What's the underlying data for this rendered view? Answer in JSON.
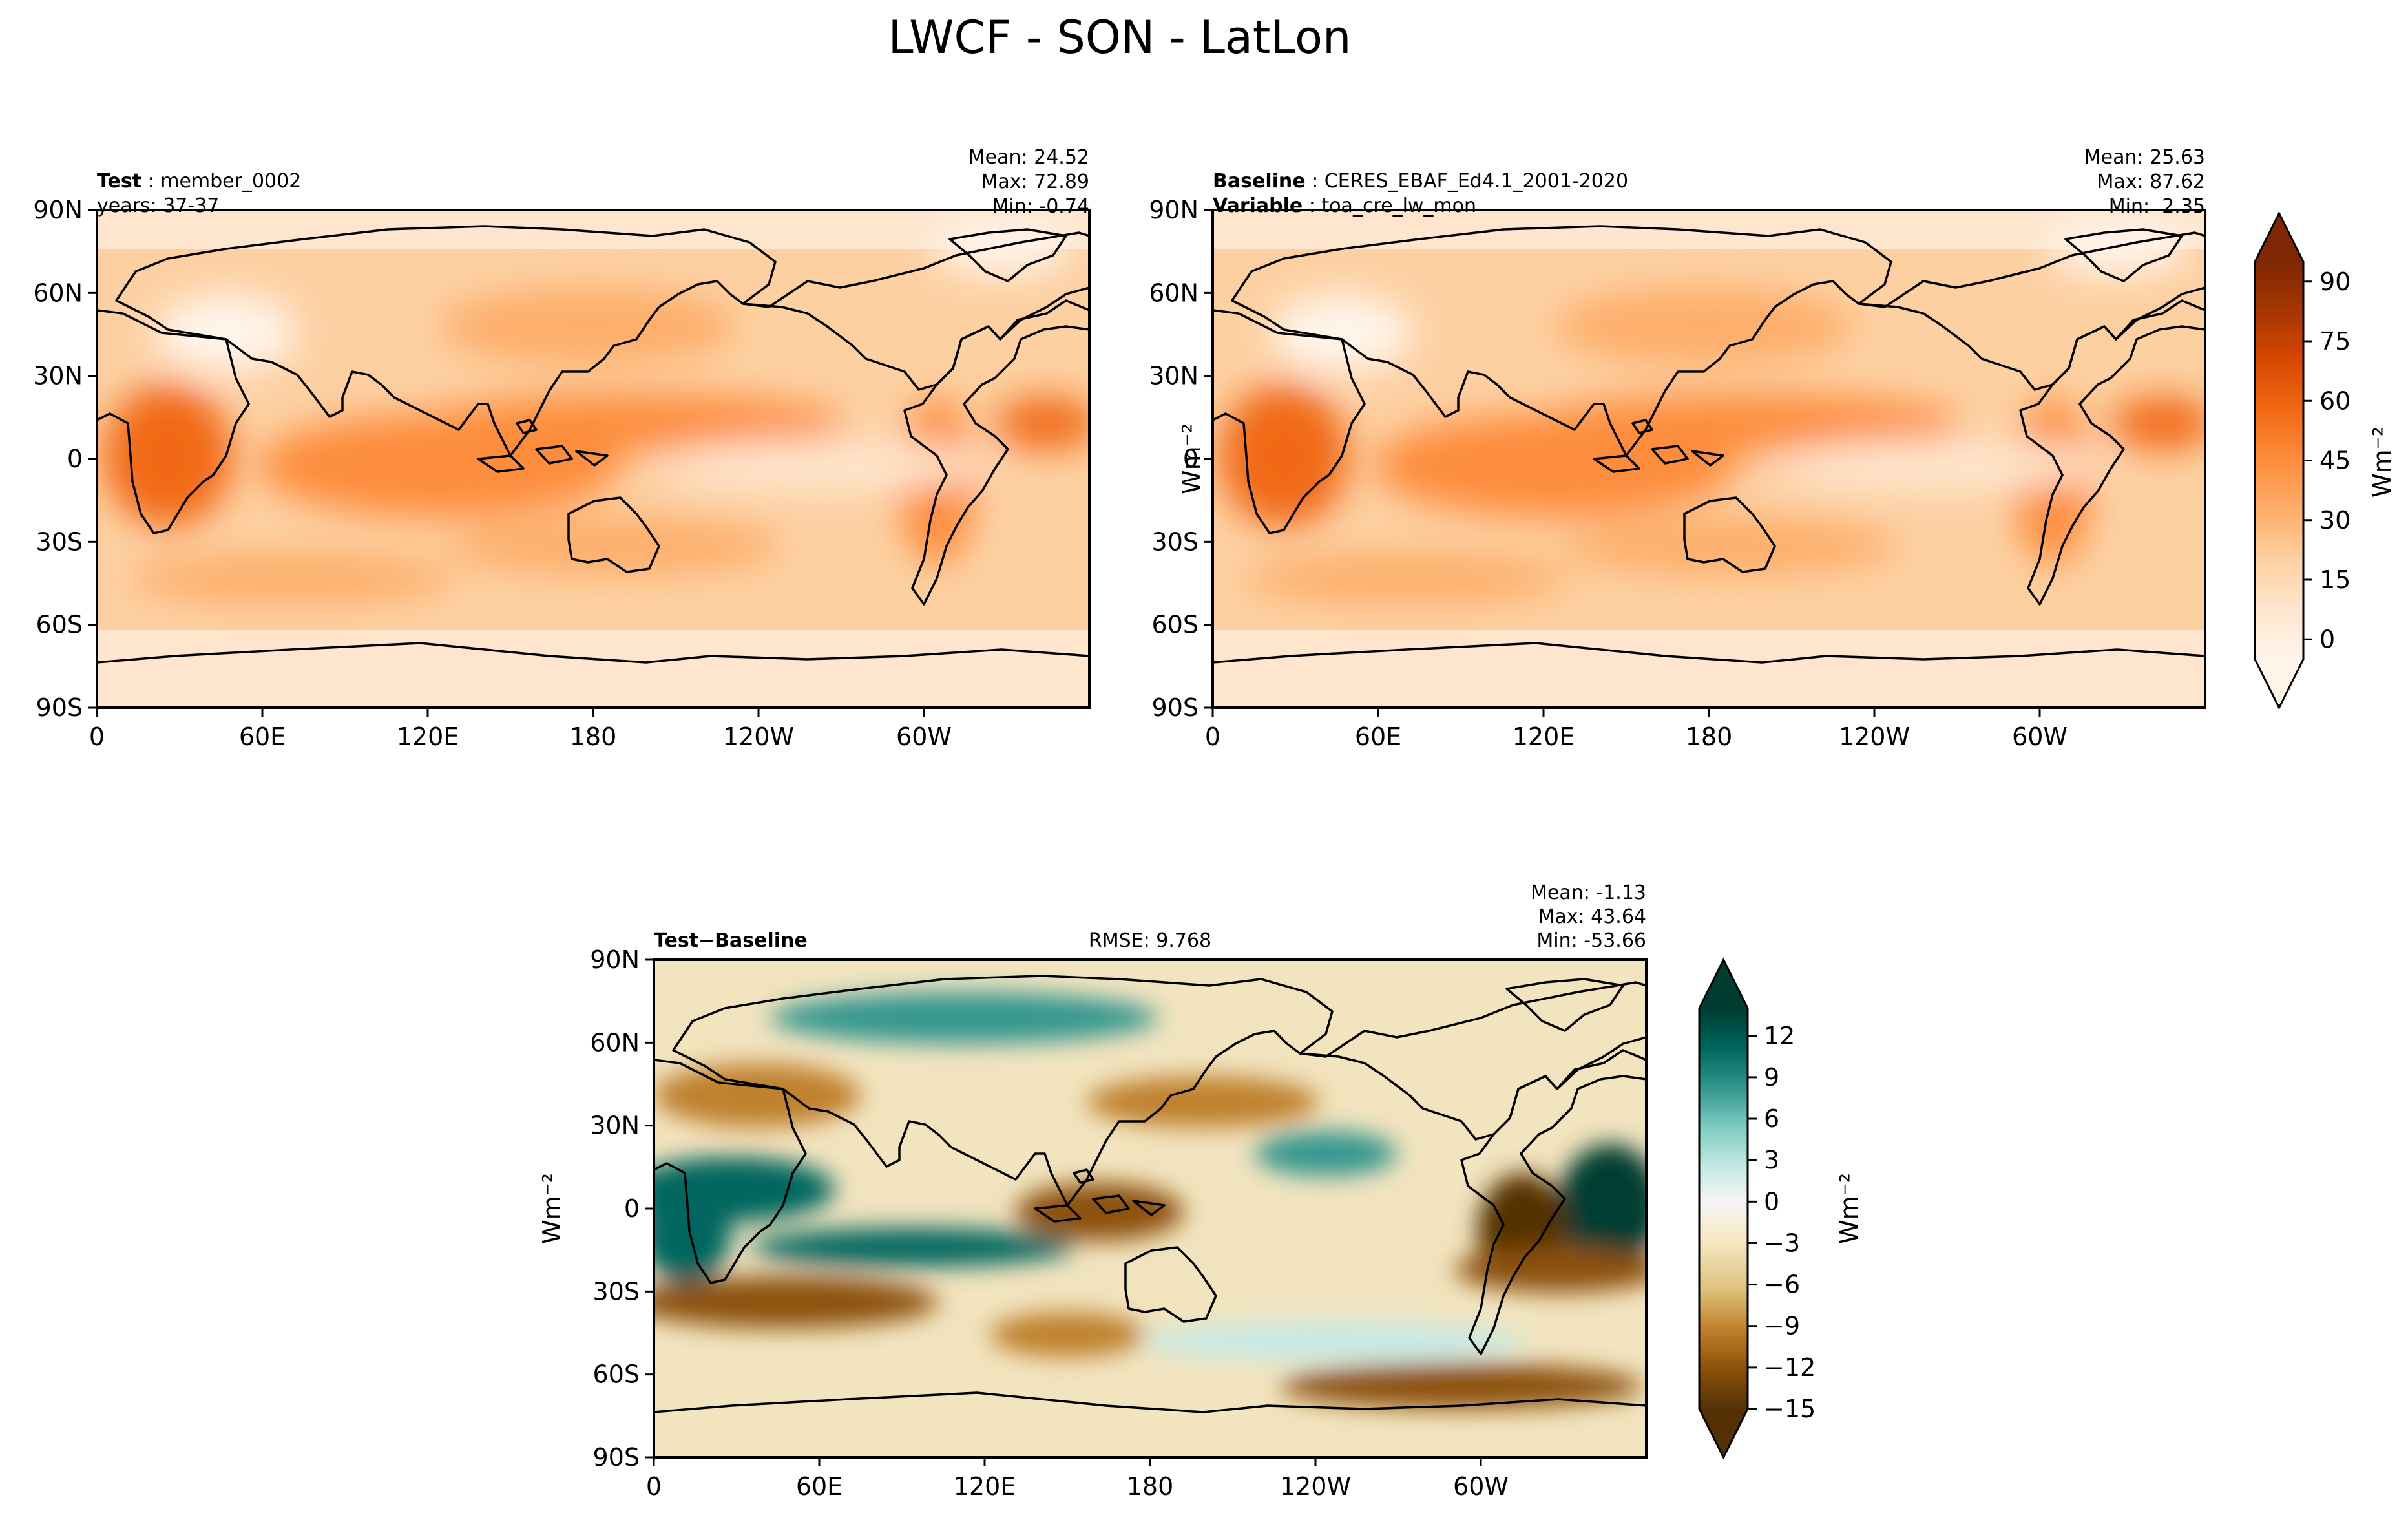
{
  "figure": {
    "title": "LWCF - SON - LatLon"
  },
  "chart_data": [
    {
      "type": "heatmap",
      "projection": "latlon",
      "panel": "test",
      "left_title_bold": "Test",
      "left_title_text": "member_0002",
      "left_subtitle": "years: 37-37",
      "stats": [
        "Mean: 24.52",
        "Max: 72.89",
        "Min: -0.74"
      ],
      "mean": 24.52,
      "max": 72.89,
      "min": -0.74,
      "x_ticks": [
        "0",
        "60E",
        "120E",
        "180",
        "120W",
        "60W"
      ],
      "y_ticks": [
        "90N",
        "60N",
        "30N",
        "0",
        "30S",
        "60S",
        "90S"
      ],
      "ylabel": "",
      "colormap": "Oranges",
      "colorbar_shared_with": "baseline"
    },
    {
      "type": "heatmap",
      "projection": "latlon",
      "panel": "baseline",
      "left_title_bold": "Baseline",
      "left_title_text": "CERES_EBAF_Ed4.1_2001-2020",
      "left_subtitle_bold": "Variable",
      "left_subtitle_text": "toa_cre_lw_mon",
      "stats": [
        "Mean: 25.63",
        "Max: 87.62",
        "Min:  2.35"
      ],
      "mean": 25.63,
      "max": 87.62,
      "min": 2.35,
      "x_ticks": [
        "0",
        "60E",
        "120E",
        "180",
        "120W",
        "60W"
      ],
      "y_ticks": [
        "90N",
        "60N",
        "30N",
        "0",
        "30S",
        "60S",
        "90S"
      ],
      "ylabel": "Wm⁻²",
      "colormap": "Oranges",
      "colorbar": {
        "ticks": [
          "90",
          "75",
          "60",
          "45",
          "30",
          "15",
          "0"
        ],
        "levels": [
          -5,
          95
        ],
        "label": "Wm⁻²",
        "extend": "both",
        "colors": [
          "#fff5eb",
          "#fee6ce",
          "#fdd0a2",
          "#fdae6b",
          "#fd8d3c",
          "#f16913",
          "#d94801",
          "#a63603",
          "#7f2704"
        ]
      }
    },
    {
      "type": "heatmap",
      "projection": "latlon",
      "panel": "difference",
      "left_title_bold_1": "Test",
      "left_title_sep": "−",
      "left_title_bold_2": "Baseline",
      "center_title": "RMSE: 9.768",
      "rmse": 9.768,
      "stats": [
        "Mean: -1.13",
        "Max: 43.64",
        "Min: -53.66"
      ],
      "mean": -1.13,
      "max": 43.64,
      "min": -53.66,
      "x_ticks": [
        "0",
        "60E",
        "120E",
        "180",
        "120W",
        "60W"
      ],
      "y_ticks": [
        "90N",
        "60N",
        "30N",
        "0",
        "30S",
        "60S",
        "90S"
      ],
      "ylabel": "Wm⁻²",
      "colormap": "BrBG",
      "colorbar": {
        "ticks": [
          "12",
          "9",
          "6",
          "3",
          "0",
          "−3",
          "−6",
          "−9",
          "−12",
          "−15"
        ],
        "levels": [
          -15,
          14
        ],
        "label": "Wm⁻²",
        "extend": "both",
        "colors": [
          "#543005",
          "#8c510a",
          "#bf812d",
          "#dfc27d",
          "#f6e8c3",
          "#f5f5f5",
          "#c7eae5",
          "#80cdc1",
          "#35978f",
          "#01665e",
          "#003c30"
        ]
      }
    }
  ]
}
